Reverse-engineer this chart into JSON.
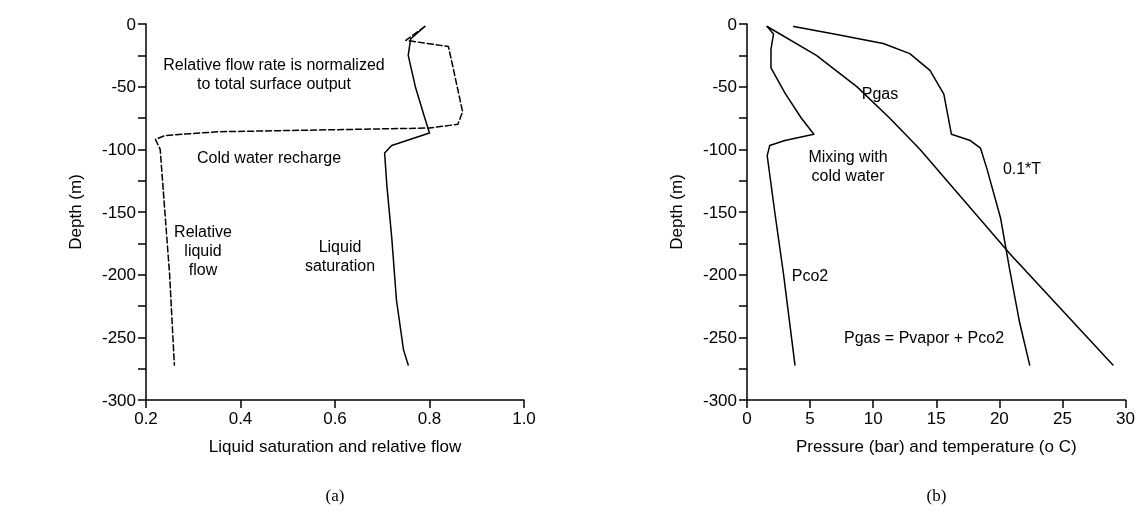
{
  "chart_data": [
    {
      "type": "line",
      "xlabel": "Liquid saturation and relative flow",
      "ylabel": "Depth (m)",
      "xlim": [
        0.2,
        1.0
      ],
      "xticks": [
        0.2,
        0.4,
        0.6,
        0.8,
        {
          "value": 1,
          "label": "1.0"
        }
      ],
      "ylim": [
        -300,
        0
      ],
      "yticks": [
        0,
        {
          "value": -25,
          "label": null
        },
        -50,
        {
          "value": -75,
          "label": null
        },
        -100,
        {
          "value": -125,
          "label": null
        },
        -150,
        {
          "value": -175,
          "label": null
        },
        -200,
        {
          "value": -225,
          "label": null
        },
        -250,
        {
          "value": -275,
          "label": null
        },
        -300
      ],
      "grid": false,
      "marker": "none",
      "series": [
        {
          "name": "Liquid\nsaturation",
          "color": "#000000",
          "line_style": "solid",
          "x": [
            0.79,
            0.76,
            0.755,
            0.77,
            0.79,
            0.8,
            0.72,
            0.705,
            0.71,
            0.72,
            0.73,
            0.745,
            0.755
          ],
          "values": [
            -2,
            -12,
            -25,
            -50,
            -75,
            -87,
            -97,
            -103,
            -130,
            -170,
            -220,
            -260,
            -272
          ]
        },
        {
          "name": "Relative\nliquid\nflow",
          "color": "#000000",
          "line_style": "dashed",
          "x": [
            0.79,
            0.75,
            0.84,
            0.85,
            0.87,
            0.86,
            0.8,
            0.35,
            0.24,
            0.22,
            0.23,
            0.24,
            0.25,
            0.26
          ],
          "values": [
            -2,
            -13,
            -18,
            -35,
            -70,
            -80,
            -83,
            -86,
            -89,
            -92,
            -100,
            -150,
            -200,
            -272
          ]
        }
      ],
      "annotations": [
        "Relative flow rate is normalized\nto total surface output",
        "Cold water recharge",
        "(a)"
      ]
    },
    {
      "type": "line",
      "xlabel": "Pressure (bar) and temperature (o C)",
      "ylabel": "Depth (m)",
      "xlim": [
        0,
        30
      ],
      "xticks": [
        0,
        5,
        10,
        15,
        20,
        25,
        30
      ],
      "ylim": [
        -300,
        0
      ],
      "yticks": [
        0,
        {
          "value": -25,
          "label": null
        },
        -50,
        {
          "value": -75,
          "label": null
        },
        -100,
        {
          "value": -125,
          "label": null
        },
        -150,
        {
          "value": -175,
          "label": null
        },
        -200,
        {
          "value": -225,
          "label": null
        },
        -250,
        {
          "value": -275,
          "label": null
        },
        -300
      ],
      "grid": false,
      "marker": "none",
      "series": [
        {
          "name": "0.1*T",
          "color": "#000000",
          "line_style": "solid",
          "x": [
            3.7,
            6.9,
            10.8,
            12.9,
            14.5,
            15.6,
            16.2,
            17.7,
            18.5,
            19.0,
            20.1,
            20.8,
            21.6,
            22.4
          ],
          "values": [
            -2,
            -8,
            -15.5,
            -23.6,
            -37,
            -56,
            -88,
            -93,
            -99,
            -115,
            -155,
            -195,
            -238,
            -272
          ]
        },
        {
          "name": "Pgas",
          "color": "#000000",
          "line_style": "solid",
          "x": [
            1.6,
            5.5,
            8.7,
            11.3,
            13.7,
            20.8,
            29
          ],
          "values": [
            -2,
            -25,
            -50,
            -75,
            -100,
            -183,
            -272
          ]
        },
        {
          "name": "Pco2",
          "color": "#000000",
          "line_style": "solid",
          "x": [
            1.6,
            2.1,
            1.9,
            1.9,
            3.0,
            4.3,
            5.3,
            3.0,
            1.8,
            1.6,
            2.2,
            2.9,
            3.8
          ],
          "values": [
            -2,
            -8,
            -20,
            -35,
            -55,
            -75,
            -88,
            -93,
            -97,
            -105,
            -150,
            -200,
            -272
          ]
        }
      ],
      "annotations": [
        "Mixing with\ncold water",
        "Pgas = Pvapor + Pco2",
        "(b)"
      ]
    }
  ]
}
